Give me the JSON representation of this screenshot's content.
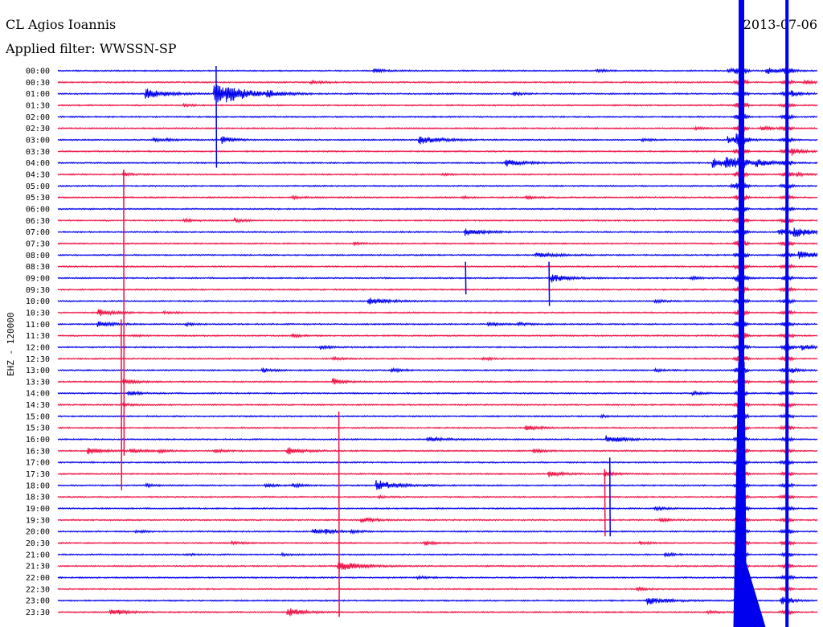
{
  "header": {
    "station": "CL Agios Ioannis",
    "filter": "Applied filter: WWSSN-SP",
    "date": "2013-07-06"
  },
  "chart_data": {
    "type": "line",
    "title": "CL Agios Ioannis",
    "subtitle": "Applied filter: WWSSN-SP",
    "date": "2013-07-06",
    "ylabel": "EHZ - 120000",
    "y_tick_labels": [
      "00:00",
      "00:30",
      "01:00",
      "01:30",
      "02:00",
      "02:30",
      "03:00",
      "03:30",
      "04:00",
      "04:30",
      "05:00",
      "05:30",
      "06:00",
      "06:30",
      "07:00",
      "07:30",
      "08:00",
      "08:30",
      "09:00",
      "09:30",
      "10:00",
      "10:30",
      "11:00",
      "11:30",
      "12:00",
      "12:30",
      "13:00",
      "13:30",
      "14:00",
      "14:30",
      "15:00",
      "15:30",
      "16:00",
      "16:30",
      "17:00",
      "17:30",
      "18:00",
      "18:30",
      "19:00",
      "19:30",
      "20:00",
      "20:30",
      "21:00",
      "21:30",
      "22:00",
      "22:30",
      "23:00",
      "23:30"
    ],
    "trace_colors": [
      "#0000ee",
      "#ee1144"
    ],
    "minutes_per_line": 30,
    "events": [
      {
        "line": 0,
        "min": 12.5,
        "amp": 0.7,
        "dur": 1.2
      },
      {
        "line": 0,
        "min": 21.3,
        "amp": 0.5,
        "dur": 1.0
      },
      {
        "line": 0,
        "min": 26.5,
        "amp": 0.7,
        "dur": 1.2
      },
      {
        "line": 0,
        "min": 28.0,
        "amp": 1.2,
        "dur": 1.6
      },
      {
        "line": 1,
        "min": 10.0,
        "amp": 0.5,
        "dur": 1.4
      },
      {
        "line": 1,
        "min": 29.5,
        "amp": 0.6,
        "dur": 1.2
      },
      {
        "line": 2,
        "min": 3.5,
        "amp": 1.8,
        "dur": 2.0
      },
      {
        "line": 2,
        "min": 6.2,
        "amp": 3.5,
        "dur": 2.5
      },
      {
        "line": 2,
        "min": 6.7,
        "amp": 1.6,
        "dur": 2.0
      },
      {
        "line": 2,
        "min": 8.3,
        "amp": 1.0,
        "dur": 1.5
      },
      {
        "line": 2,
        "min": 18.0,
        "amp": 0.6,
        "dur": 1.0
      },
      {
        "line": 2,
        "min": 29.0,
        "amp": 0.8,
        "dur": 1.2
      },
      {
        "line": 3,
        "min": 5.0,
        "amp": 0.4,
        "dur": 1.0
      },
      {
        "line": 5,
        "min": 25.2,
        "amp": 0.4,
        "dur": 0.8
      },
      {
        "line": 5,
        "min": 27.8,
        "amp": 0.7,
        "dur": 1.0
      },
      {
        "line": 6,
        "min": 3.8,
        "amp": 0.6,
        "dur": 2.0
      },
      {
        "line": 6,
        "min": 6.5,
        "amp": 1.5,
        "dur": 1.0
      },
      {
        "line": 6,
        "min": 14.3,
        "amp": 1.5,
        "dur": 2.0
      },
      {
        "line": 6,
        "min": 23.1,
        "amp": 0.5,
        "dur": 1.0
      },
      {
        "line": 6,
        "min": 26.5,
        "amp": 1.3,
        "dur": 1.0
      },
      {
        "line": 6,
        "min": 26.8,
        "amp": 1.1,
        "dur": 1.0
      },
      {
        "line": 7,
        "min": 29.0,
        "amp": 1.5,
        "dur": 1.0
      },
      {
        "line": 8,
        "min": 17.7,
        "amp": 1.2,
        "dur": 1.8
      },
      {
        "line": 8,
        "min": 25.9,
        "amp": 1.8,
        "dur": 2.0
      },
      {
        "line": 8,
        "min": 26.4,
        "amp": 1.4,
        "dur": 2.0
      },
      {
        "line": 8,
        "min": 27.6,
        "amp": 1.0,
        "dur": 1.5
      },
      {
        "line": 9,
        "min": 2.6,
        "amp": 0.5,
        "dur": 1.0
      },
      {
        "line": 9,
        "min": 15.2,
        "amp": 0.4,
        "dur": 0.8
      },
      {
        "line": 9,
        "min": 29.2,
        "amp": 0.6,
        "dur": 1.0
      },
      {
        "line": 10,
        "min": 26.6,
        "amp": 0.6,
        "dur": 1.0
      },
      {
        "line": 11,
        "min": 9.3,
        "amp": 0.4,
        "dur": 1.0
      },
      {
        "line": 11,
        "min": 18.5,
        "amp": 0.5,
        "dur": 1.0
      },
      {
        "line": 11,
        "min": 16.0,
        "amp": 0.4,
        "dur": 0.8
      },
      {
        "line": 13,
        "min": 5.0,
        "amp": 0.6,
        "dur": 1.0
      },
      {
        "line": 13,
        "min": 7.0,
        "amp": 0.6,
        "dur": 1.0
      },
      {
        "line": 14,
        "min": 16.1,
        "amp": 1.3,
        "dur": 1.8
      },
      {
        "line": 14,
        "min": 28.5,
        "amp": 0.6,
        "dur": 1.0
      },
      {
        "line": 14,
        "min": 29.1,
        "amp": 2.0,
        "dur": 1.8
      },
      {
        "line": 15,
        "min": 11.7,
        "amp": 0.4,
        "dur": 0.8
      },
      {
        "line": 16,
        "min": 18.9,
        "amp": 0.7,
        "dur": 2.5
      },
      {
        "line": 16,
        "min": 29.3,
        "amp": 1.5,
        "dur": 2.0
      },
      {
        "line": 18,
        "min": 19.5,
        "amp": 1.6,
        "dur": 1.5
      },
      {
        "line": 18,
        "min": 25.0,
        "amp": 0.5,
        "dur": 1.0
      },
      {
        "line": 18,
        "min": 26.8,
        "amp": 0.6,
        "dur": 1.0
      },
      {
        "line": 20,
        "min": 12.3,
        "amp": 1.2,
        "dur": 2.0
      },
      {
        "line": 20,
        "min": 23.6,
        "amp": 0.5,
        "dur": 1.0
      },
      {
        "line": 21,
        "min": 4.2,
        "amp": 0.4,
        "dur": 1.0
      },
      {
        "line": 21,
        "min": 1.6,
        "amp": 1.2,
        "dur": 1.5
      },
      {
        "line": 22,
        "min": 1.6,
        "amp": 1.0,
        "dur": 1.5
      },
      {
        "line": 22,
        "min": 5.1,
        "amp": 0.4,
        "dur": 0.8
      },
      {
        "line": 22,
        "min": 17.0,
        "amp": 0.6,
        "dur": 1.2
      },
      {
        "line": 22,
        "min": 18.2,
        "amp": 0.5,
        "dur": 1.0
      },
      {
        "line": 23,
        "min": 9.3,
        "amp": 0.5,
        "dur": 1.0
      },
      {
        "line": 23,
        "min": 3.0,
        "amp": 0.4,
        "dur": 0.8
      },
      {
        "line": 24,
        "min": 10.4,
        "amp": 0.7,
        "dur": 1.0
      },
      {
        "line": 24,
        "min": 28.7,
        "amp": 0.6,
        "dur": 1.0
      },
      {
        "line": 24,
        "min": 29.4,
        "amp": 0.9,
        "dur": 1.2
      },
      {
        "line": 25,
        "min": 10.9,
        "amp": 0.4,
        "dur": 1.0
      },
      {
        "line": 25,
        "min": 16.8,
        "amp": 0.5,
        "dur": 1.0
      },
      {
        "line": 26,
        "min": 8.1,
        "amp": 0.8,
        "dur": 1.0
      },
      {
        "line": 26,
        "min": 13.2,
        "amp": 0.6,
        "dur": 1.0
      },
      {
        "line": 26,
        "min": 23.6,
        "amp": 0.5,
        "dur": 1.0
      },
      {
        "line": 26,
        "min": 29.0,
        "amp": 0.6,
        "dur": 1.0
      },
      {
        "line": 27,
        "min": 2.6,
        "amp": 1.0,
        "dur": 1.2
      },
      {
        "line": 27,
        "min": 10.9,
        "amp": 1.2,
        "dur": 1.0
      },
      {
        "line": 28,
        "min": 2.8,
        "amp": 0.9,
        "dur": 1.0
      },
      {
        "line": 28,
        "min": 25.1,
        "amp": 0.5,
        "dur": 1.0
      },
      {
        "line": 29,
        "min": 2.6,
        "amp": 0.5,
        "dur": 1.0
      },
      {
        "line": 30,
        "min": 21.5,
        "amp": 0.4,
        "dur": 0.8
      },
      {
        "line": 31,
        "min": 18.5,
        "amp": 0.9,
        "dur": 1.5
      },
      {
        "line": 32,
        "min": 14.6,
        "amp": 0.8,
        "dur": 2.0
      },
      {
        "line": 32,
        "min": 21.7,
        "amp": 1.4,
        "dur": 2.0
      },
      {
        "line": 33,
        "min": 1.2,
        "amp": 1.2,
        "dur": 1.5
      },
      {
        "line": 33,
        "min": 2.9,
        "amp": 0.8,
        "dur": 1.2
      },
      {
        "line": 33,
        "min": 4.0,
        "amp": 0.5,
        "dur": 1.0
      },
      {
        "line": 33,
        "min": 6.2,
        "amp": 0.6,
        "dur": 1.0
      },
      {
        "line": 33,
        "min": 9.1,
        "amp": 1.3,
        "dur": 1.5
      },
      {
        "line": 33,
        "min": 18.8,
        "amp": 0.6,
        "dur": 1.0
      },
      {
        "line": 35,
        "min": 19.4,
        "amp": 1.0,
        "dur": 1.5
      },
      {
        "line": 35,
        "min": 21.6,
        "amp": 0.8,
        "dur": 1.2
      },
      {
        "line": 36,
        "min": 3.5,
        "amp": 0.5,
        "dur": 1.0
      },
      {
        "line": 36,
        "min": 8.2,
        "amp": 0.6,
        "dur": 1.0
      },
      {
        "line": 36,
        "min": 9.3,
        "amp": 0.6,
        "dur": 1.0
      },
      {
        "line": 36,
        "min": 12.6,
        "amp": 2.0,
        "dur": 2.0
      },
      {
        "line": 37,
        "min": 12.7,
        "amp": 0.4,
        "dur": 0.8
      },
      {
        "line": 38,
        "min": 23.6,
        "amp": 0.6,
        "dur": 1.0
      },
      {
        "line": 39,
        "min": 12.0,
        "amp": 1.0,
        "dur": 1.2
      },
      {
        "line": 39,
        "min": 23.8,
        "amp": 0.5,
        "dur": 1.0
      },
      {
        "line": 40,
        "min": 3.1,
        "amp": 0.4,
        "dur": 1.0
      },
      {
        "line": 40,
        "min": 10.1,
        "amp": 0.9,
        "dur": 1.2
      },
      {
        "line": 40,
        "min": 10.6,
        "amp": 0.8,
        "dur": 1.0
      },
      {
        "line": 40,
        "min": 11.6,
        "amp": 0.6,
        "dur": 1.0
      },
      {
        "line": 41,
        "min": 6.9,
        "amp": 0.5,
        "dur": 1.0
      },
      {
        "line": 41,
        "min": 14.5,
        "amp": 0.7,
        "dur": 1.0
      },
      {
        "line": 41,
        "min": 23.0,
        "amp": 0.5,
        "dur": 1.0
      },
      {
        "line": 42,
        "min": 5.1,
        "amp": 0.4,
        "dur": 0.8
      },
      {
        "line": 42,
        "min": 8.9,
        "amp": 0.4,
        "dur": 0.8
      },
      {
        "line": 42,
        "min": 24.0,
        "amp": 0.6,
        "dur": 1.0
      },
      {
        "line": 43,
        "min": 11.1,
        "amp": 2.0,
        "dur": 2.0
      },
      {
        "line": 44,
        "min": 14.2,
        "amp": 0.5,
        "dur": 1.0
      },
      {
        "line": 45,
        "min": 22.9,
        "amp": 0.5,
        "dur": 1.0
      },
      {
        "line": 46,
        "min": 23.3,
        "amp": 1.4,
        "dur": 2.0
      },
      {
        "line": 46,
        "min": 28.6,
        "amp": 0.8,
        "dur": 1.2
      },
      {
        "line": 47,
        "min": 2.1,
        "amp": 1.2,
        "dur": 1.5
      },
      {
        "line": 47,
        "min": 9.1,
        "amp": 1.6,
        "dur": 1.5
      },
      {
        "line": 47,
        "min": 25.7,
        "amp": 0.5,
        "dur": 1.0
      }
    ],
    "spikes": [
      {
        "line_from": 0,
        "line_to": 8,
        "min": 6.25,
        "color": "#0000ee"
      },
      {
        "line_from": 9,
        "line_to": 33,
        "min": 2.6,
        "color": "#ee1144"
      },
      {
        "line_from": 22,
        "line_to": 36,
        "min": 2.5,
        "color": "#ee1144"
      },
      {
        "line_from": 30,
        "line_to": 47,
        "min": 11.1,
        "color": "#ee1144"
      },
      {
        "line_from": 35,
        "line_to": 40,
        "min": 21.6,
        "color": "#ee1144"
      },
      {
        "line_from": 34,
        "line_to": 40,
        "min": 21.8,
        "color": "#0000ee"
      },
      {
        "line_from": 17,
        "line_to": 20,
        "min": 19.4,
        "color": "#0000ee"
      },
      {
        "line_from": 17,
        "line_to": 19,
        "min": 16.1,
        "color": "#0000ee"
      }
    ],
    "big_quake": {
      "start_min": 27.0,
      "start_line": 0,
      "end_line": 47,
      "columns_min": [
        27.0,
        28.8
      ]
    }
  }
}
